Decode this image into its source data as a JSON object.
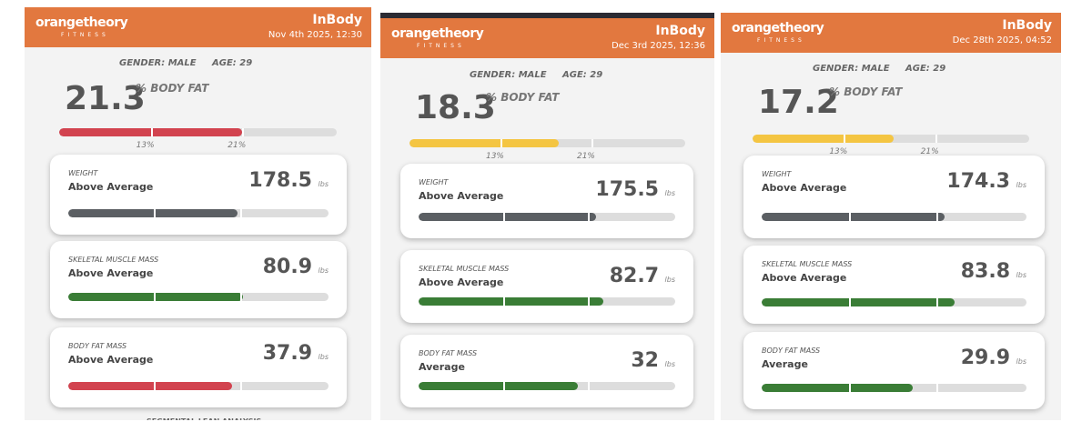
{
  "panels": [
    {
      "logo": "orangetheory",
      "logo_sub": "FITNESS",
      "brand": "InBody",
      "date": "Nov 4th 2025, 12:30",
      "gender": "GENDER: MALE",
      "age": "AGE: 29",
      "body_fat": "21.3",
      "body_fat_label": "% BODY FAT",
      "markers": [
        "13%",
        "21%"
      ],
      "cards": [
        {
          "label": "WEIGHT",
          "status": "Above Average",
          "value": "178.5",
          "unit": "lbs"
        },
        {
          "label": "SKELETAL MUSCLE MASS",
          "status": "Above Average",
          "value": "80.9",
          "unit": "lbs"
        },
        {
          "label": "BODY FAT MASS",
          "status": "Above Average",
          "value": "37.9",
          "unit": "lbs"
        }
      ],
      "footer": "SEGMENTAL LEAN ANALYSIS"
    },
    {
      "logo": "orangetheory",
      "logo_sub": "FITNESS",
      "brand": "InBody",
      "date": "Dec 3rd 2025, 12:36",
      "gender": "GENDER: MALE",
      "age": "AGE: 29",
      "body_fat": "18.3",
      "body_fat_label": "% BODY FAT",
      "markers": [
        "13%",
        "21%"
      ],
      "cards": [
        {
          "label": "WEIGHT",
          "status": "Above Average",
          "value": "175.5",
          "unit": "lbs"
        },
        {
          "label": "SKELETAL MUSCLE MASS",
          "status": "Above Average",
          "value": "82.7",
          "unit": "lbs"
        },
        {
          "label": "BODY FAT MASS",
          "status": "Average",
          "value": "32",
          "unit": "lbs"
        }
      ]
    },
    {
      "logo": "orangetheory",
      "logo_sub": "FITNESS",
      "brand": "InBody",
      "date": "Dec 28th 2025, 04:52",
      "gender": "GENDER: MALE",
      "age": "AGE: 29",
      "body_fat": "17.2",
      "body_fat_label": "% BODY FAT",
      "markers": [
        "13%",
        "21%"
      ],
      "cards": [
        {
          "label": "WEIGHT",
          "status": "Above Average",
          "value": "174.3",
          "unit": "lbs"
        },
        {
          "label": "SKELETAL MUSCLE MASS",
          "status": "Above Average",
          "value": "83.8",
          "unit": "lbs"
        },
        {
          "label": "BODY FAT MASS",
          "status": "Average",
          "value": "29.9",
          "unit": "lbs"
        }
      ]
    }
  ]
}
